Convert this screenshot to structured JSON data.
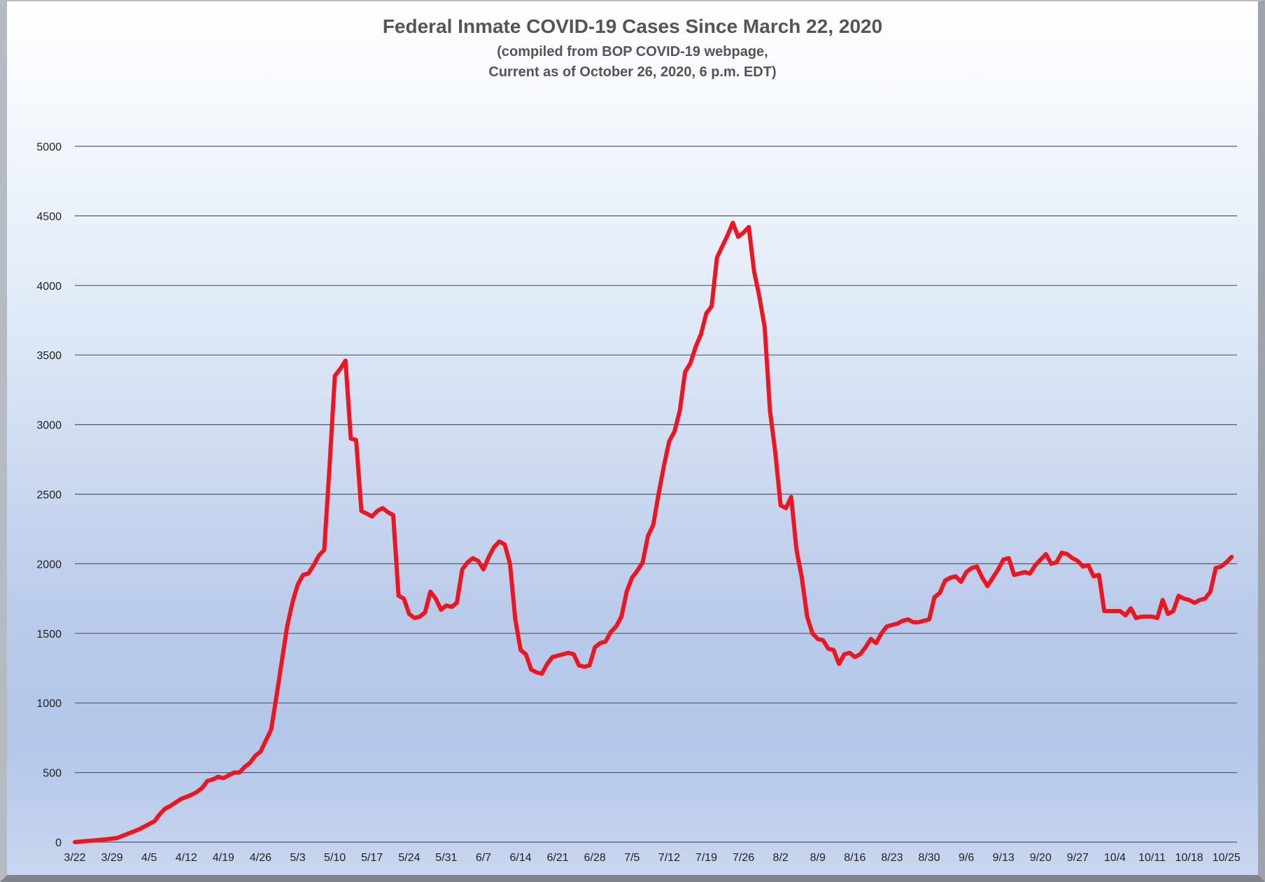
{
  "chart_data": {
    "type": "line",
    "title": "Federal Inmate COVID-19 Cases Since March 22, 2020",
    "subtitle_lines": [
      "(compiled from BOP COVID-19 webpage,",
      "Current as of October 26, 2020, 6 p.m. EDT)"
    ],
    "xlabel": "",
    "ylabel": "",
    "ylim": [
      0,
      5000
    ],
    "y_ticks": [
      0,
      500,
      1000,
      1500,
      2000,
      2500,
      3000,
      3500,
      4000,
      4500,
      5000
    ],
    "x_tick_labels": [
      "3/22",
      "3/29",
      "4/5",
      "4/12",
      "4/19",
      "4/26",
      "5/3",
      "5/10",
      "5/17",
      "5/24",
      "5/31",
      "6/7",
      "6/14",
      "6/21",
      "6/28",
      "7/5",
      "7/12",
      "7/19",
      "7/26",
      "8/2",
      "8/9",
      "8/16",
      "8/23",
      "8/30",
      "9/6",
      "9/13",
      "9/20",
      "9/27",
      "10/4",
      "10/11",
      "10/18",
      "10/25"
    ],
    "x_start": "3/22",
    "x_end": "10/26",
    "grid": true,
    "legend": "none",
    "line_color": "#ee1520",
    "series": [
      {
        "name": "",
        "points": [
          [
            "3/22",
            0
          ],
          [
            "3/25",
            10
          ],
          [
            "3/28",
            20
          ],
          [
            "3/30",
            30
          ],
          [
            "4/1",
            60
          ],
          [
            "4/3",
            90
          ],
          [
            "4/5",
            130
          ],
          [
            "4/6",
            150
          ],
          [
            "4/7",
            200
          ],
          [
            "4/8",
            240
          ],
          [
            "4/9",
            260
          ],
          [
            "4/11",
            310
          ],
          [
            "4/13",
            340
          ],
          [
            "4/14",
            360
          ],
          [
            "4/15",
            390
          ],
          [
            "4/16",
            440
          ],
          [
            "4/17",
            450
          ],
          [
            "4/18",
            470
          ],
          [
            "4/19",
            460
          ],
          [
            "4/20",
            480
          ],
          [
            "4/21",
            500
          ],
          [
            "4/22",
            500
          ],
          [
            "4/23",
            540
          ],
          [
            "4/24",
            570
          ],
          [
            "4/25",
            620
          ],
          [
            "4/26",
            650
          ],
          [
            "4/27",
            730
          ],
          [
            "4/28",
            810
          ],
          [
            "4/29",
            1050
          ],
          [
            "4/30",
            1300
          ],
          [
            "5/1",
            1550
          ],
          [
            "5/2",
            1720
          ],
          [
            "5/3",
            1850
          ],
          [
            "5/4",
            1920
          ],
          [
            "5/5",
            1930
          ],
          [
            "5/6",
            1990
          ],
          [
            "5/7",
            2060
          ],
          [
            "5/8",
            2100
          ],
          [
            "5/9",
            2700
          ],
          [
            "5/10",
            3350
          ],
          [
            "5/11",
            3400
          ],
          [
            "5/12",
            3460
          ],
          [
            "5/13",
            2900
          ],
          [
            "5/14",
            2890
          ],
          [
            "5/15",
            2380
          ],
          [
            "5/16",
            2360
          ],
          [
            "5/17",
            2340
          ],
          [
            "5/18",
            2380
          ],
          [
            "5/19",
            2400
          ],
          [
            "5/20",
            2370
          ],
          [
            "5/21",
            2350
          ],
          [
            "5/22",
            1770
          ],
          [
            "5/23",
            1750
          ],
          [
            "5/24",
            1640
          ],
          [
            "5/25",
            1610
          ],
          [
            "5/26",
            1620
          ],
          [
            "5/27",
            1650
          ],
          [
            "5/28",
            1800
          ],
          [
            "5/29",
            1750
          ],
          [
            "5/30",
            1670
          ],
          [
            "5/31",
            1700
          ],
          [
            "6/1",
            1690
          ],
          [
            "6/2",
            1720
          ],
          [
            "6/3",
            1960
          ],
          [
            "6/4",
            2010
          ],
          [
            "6/5",
            2040
          ],
          [
            "6/6",
            2020
          ],
          [
            "6/7",
            1960
          ],
          [
            "6/8",
            2050
          ],
          [
            "6/9",
            2120
          ],
          [
            "6/10",
            2160
          ],
          [
            "6/11",
            2140
          ],
          [
            "6/12",
            2000
          ],
          [
            "6/13",
            1600
          ],
          [
            "6/14",
            1380
          ],
          [
            "6/15",
            1350
          ],
          [
            "6/16",
            1240
          ],
          [
            "6/17",
            1220
          ],
          [
            "6/18",
            1210
          ],
          [
            "6/19",
            1280
          ],
          [
            "6/20",
            1330
          ],
          [
            "6/21",
            1340
          ],
          [
            "6/22",
            1350
          ],
          [
            "6/23",
            1360
          ],
          [
            "6/24",
            1350
          ],
          [
            "6/25",
            1270
          ],
          [
            "6/26",
            1260
          ],
          [
            "6/27",
            1270
          ],
          [
            "6/28",
            1400
          ],
          [
            "6/29",
            1430
          ],
          [
            "6/30",
            1440
          ],
          [
            "7/1",
            1510
          ],
          [
            "7/2",
            1550
          ],
          [
            "7/3",
            1620
          ],
          [
            "7/4",
            1800
          ],
          [
            "7/5",
            1900
          ],
          [
            "7/6",
            1950
          ],
          [
            "7/7",
            2010
          ],
          [
            "7/8",
            2200
          ],
          [
            "7/9",
            2280
          ],
          [
            "7/10",
            2500
          ],
          [
            "7/11",
            2700
          ],
          [
            "7/12",
            2880
          ],
          [
            "7/13",
            2950
          ],
          [
            "7/14",
            3100
          ],
          [
            "7/15",
            3380
          ],
          [
            "7/16",
            3440
          ],
          [
            "7/17",
            3560
          ],
          [
            "7/18",
            3650
          ],
          [
            "7/19",
            3800
          ],
          [
            "7/20",
            3850
          ],
          [
            "7/21",
            4200
          ],
          [
            "7/22",
            4280
          ],
          [
            "7/23",
            4360
          ],
          [
            "7/24",
            4450
          ],
          [
            "7/25",
            4350
          ],
          [
            "7/26",
            4380
          ],
          [
            "7/27",
            4420
          ],
          [
            "7/28",
            4100
          ],
          [
            "7/29",
            3920
          ],
          [
            "7/30",
            3700
          ],
          [
            "7/31",
            3100
          ],
          [
            "8/1",
            2800
          ],
          [
            "8/2",
            2420
          ],
          [
            "8/3",
            2400
          ],
          [
            "8/4",
            2480
          ],
          [
            "8/5",
            2100
          ],
          [
            "8/6",
            1900
          ],
          [
            "8/7",
            1620
          ],
          [
            "8/8",
            1500
          ],
          [
            "8/9",
            1460
          ],
          [
            "8/10",
            1450
          ],
          [
            "8/11",
            1390
          ],
          [
            "8/12",
            1380
          ],
          [
            "8/13",
            1280
          ],
          [
            "8/14",
            1350
          ],
          [
            "8/15",
            1360
          ],
          [
            "8/16",
            1330
          ],
          [
            "8/17",
            1350
          ],
          [
            "8/18",
            1400
          ],
          [
            "8/19",
            1460
          ],
          [
            "8/20",
            1430
          ],
          [
            "8/21",
            1500
          ],
          [
            "8/22",
            1550
          ],
          [
            "8/23",
            1560
          ],
          [
            "8/24",
            1570
          ],
          [
            "8/25",
            1590
          ],
          [
            "8/26",
            1600
          ],
          [
            "8/27",
            1580
          ],
          [
            "8/28",
            1580
          ],
          [
            "8/29",
            1590
          ],
          [
            "8/30",
            1600
          ],
          [
            "8/31",
            1760
          ],
          [
            "9/1",
            1790
          ],
          [
            "9/2",
            1880
          ],
          [
            "9/3",
            1900
          ],
          [
            "9/4",
            1910
          ],
          [
            "9/5",
            1870
          ],
          [
            "9/6",
            1940
          ],
          [
            "9/7",
            1970
          ],
          [
            "9/8",
            1980
          ],
          [
            "9/9",
            1900
          ],
          [
            "9/10",
            1840
          ],
          [
            "9/11",
            1900
          ],
          [
            "9/12",
            1960
          ],
          [
            "9/13",
            2030
          ],
          [
            "9/14",
            2040
          ],
          [
            "9/15",
            1920
          ],
          [
            "9/16",
            1930
          ],
          [
            "9/17",
            1940
          ],
          [
            "9/18",
            1930
          ],
          [
            "9/19",
            1990
          ],
          [
            "9/20",
            2030
          ],
          [
            "9/21",
            2070
          ],
          [
            "9/22",
            2000
          ],
          [
            "9/23",
            2010
          ],
          [
            "9/24",
            2080
          ],
          [
            "9/25",
            2070
          ],
          [
            "9/26",
            2040
          ],
          [
            "9/27",
            2020
          ],
          [
            "9/28",
            1980
          ],
          [
            "9/29",
            1990
          ],
          [
            "9/30",
            1910
          ],
          [
            "10/1",
            1920
          ],
          [
            "10/2",
            1660
          ],
          [
            "10/3",
            1660
          ],
          [
            "10/4",
            1660
          ],
          [
            "10/5",
            1660
          ],
          [
            "10/6",
            1630
          ],
          [
            "10/7",
            1680
          ],
          [
            "10/8",
            1610
          ],
          [
            "10/9",
            1620
          ],
          [
            "10/10",
            1620
          ],
          [
            "10/11",
            1620
          ],
          [
            "10/12",
            1610
          ],
          [
            "10/13",
            1740
          ],
          [
            "10/14",
            1640
          ],
          [
            "10/15",
            1660
          ],
          [
            "10/16",
            1770
          ],
          [
            "10/17",
            1750
          ],
          [
            "10/18",
            1740
          ],
          [
            "10/19",
            1720
          ],
          [
            "10/20",
            1740
          ],
          [
            "10/21",
            1750
          ],
          [
            "10/22",
            1800
          ],
          [
            "10/23",
            1970
          ],
          [
            "10/24",
            1980
          ],
          [
            "10/25",
            2010
          ],
          [
            "10/26",
            2050
          ]
        ]
      }
    ]
  }
}
